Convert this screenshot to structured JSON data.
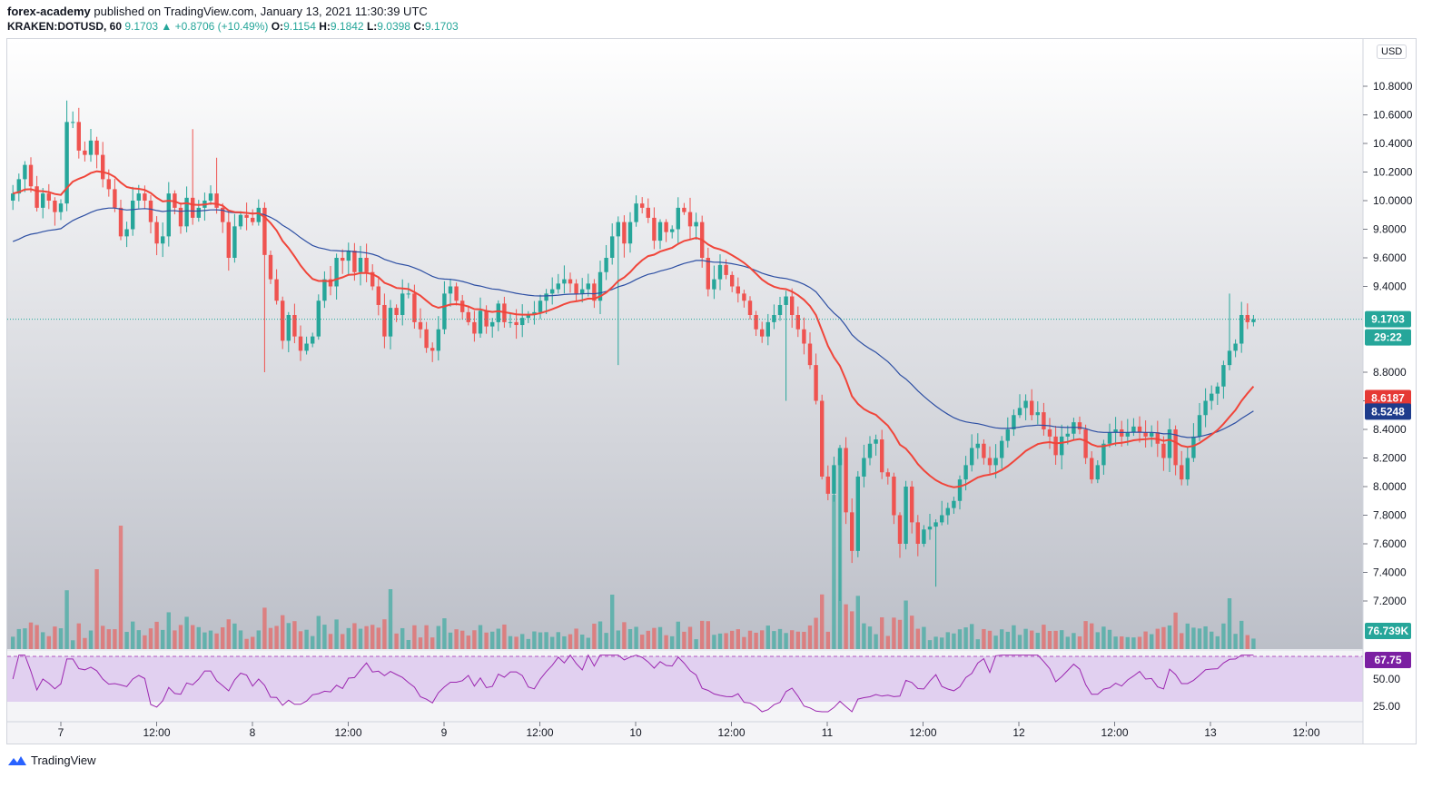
{
  "header": {
    "author": "forex-academy",
    "published_text": "published on TradingView.com, January 13, 2021 11:30:39 UTC",
    "symbol": "KRAKEN:DOTUSD, 60",
    "last": "9.1703",
    "change": "▲ +0.8706 (+10.49%)",
    "o_label": "O:",
    "o_value": "9.1154",
    "h_label": "H:",
    "h_value": "9.1842",
    "l_label": "L:",
    "l_value": "9.0398",
    "c_label": "C:",
    "c_value": "9.1703"
  },
  "price_axis": {
    "currency": "USD",
    "ticks": [
      "10.8000",
      "10.6000",
      "10.4000",
      "10.2000",
      "10.0000",
      "9.8000",
      "9.6000",
      "9.4000",
      "8.8000",
      "8.6000",
      "8.4000",
      "8.2000",
      "8.0000",
      "7.8000",
      "7.6000",
      "7.4000",
      "7.2000"
    ]
  },
  "badges": {
    "last_price": "9.1703",
    "countdown": "29:22",
    "ema_fast": "8.6187",
    "ema_slow": "8.5248",
    "volume": "76.739K",
    "rsi": "67.75"
  },
  "rsi_axis": {
    "ticks": [
      "50.00",
      "25.00"
    ]
  },
  "time_axis": {
    "labels": [
      "7",
      "12:00",
      "8",
      "12:00",
      "9",
      "12:00",
      "10",
      "12:00",
      "11",
      "12:00",
      "12",
      "12:00",
      "13",
      "12:00"
    ]
  },
  "footer": {
    "brand": "TradingView"
  },
  "colors": {
    "up": "#26a69a",
    "down": "#ef5350",
    "ema_fast": "#f0453a",
    "ema_slow": "#2d4fa3",
    "rsi": "#9c27b0",
    "rsi_band": "#e1d0f0",
    "last_price": "#26a69a"
  },
  "chart_data": {
    "type": "candlestick",
    "title": "KRAKEN:DOTUSD, 60",
    "x_start": "Jan 6 2021 21:00",
    "interval_minutes": 60,
    "ylim": [
      7.0,
      11.0
    ],
    "grid": false,
    "closes": [
      10.05,
      10.15,
      10.25,
      10.1,
      9.95,
      10.05,
      10.0,
      9.92,
      9.98,
      10.55,
      10.55,
      10.35,
      10.32,
      10.42,
      10.32,
      10.15,
      10.08,
      9.95,
      9.75,
      9.8,
      10.0,
      10.05,
      10.0,
      9.85,
      9.7,
      9.75,
      10.05,
      9.95,
      9.82,
      10.02,
      9.88,
      9.95,
      10.0,
      10.05,
      9.95,
      9.85,
      9.6,
      9.82,
      9.9,
      9.88,
      9.85,
      9.95,
      9.62,
      9.45,
      9.3,
      9.02,
      9.2,
      9.05,
      8.95,
      9.0,
      9.05,
      9.3,
      9.45,
      9.4,
      9.6,
      9.58,
      9.65,
      9.5,
      9.6,
      9.5,
      9.4,
      9.27,
      9.05,
      9.25,
      9.2,
      9.35,
      9.35,
      9.15,
      9.1,
      8.97,
      8.95,
      9.1,
      9.35,
      9.4,
      9.3,
      9.22,
      9.15,
      9.07,
      9.23,
      9.12,
      9.15,
      9.28,
      9.15,
      9.15,
      9.13,
      9.18,
      9.2,
      9.22,
      9.3,
      9.35,
      9.38,
      9.42,
      9.45,
      9.42,
      9.35,
      9.38,
      9.42,
      9.3,
      9.5,
      9.6,
      9.75,
      9.85,
      9.7,
      9.85,
      9.98,
      9.95,
      9.88,
      9.72,
      9.85,
      9.78,
      9.8,
      9.95,
      9.92,
      9.82,
      9.85,
      9.6,
      9.38,
      9.45,
      9.55,
      9.48,
      9.4,
      9.35,
      9.3,
      9.2,
      9.1,
      9.05,
      9.15,
      9.2,
      9.27,
      9.33,
      9.2,
      9.1,
      9.0,
      8.85,
      8.6,
      8.07,
      7.95,
      8.15,
      8.27,
      7.82,
      7.55,
      8.07,
      8.2,
      8.3,
      8.33,
      8.1,
      8.07,
      7.8,
      7.6,
      8.0,
      7.75,
      7.6,
      7.7,
      7.72,
      7.75,
      7.8,
      7.85,
      7.9,
      8.05,
      8.15,
      8.27,
      8.3,
      8.2,
      8.15,
      8.2,
      8.32,
      8.4,
      8.5,
      8.55,
      8.6,
      8.5,
      8.52,
      8.4,
      8.35,
      8.22,
      8.35,
      8.37,
      8.45,
      8.4,
      8.2,
      8.05,
      8.15,
      8.3,
      8.38,
      8.4,
      8.35,
      8.38,
      8.42,
      8.38,
      8.35,
      8.38,
      8.3,
      8.2,
      8.4,
      8.15,
      8.05,
      8.2,
      8.35,
      8.5,
      8.6,
      8.65,
      8.7,
      8.85,
      8.95,
      9.0,
      9.2,
      9.15,
      9.17
    ]
  }
}
